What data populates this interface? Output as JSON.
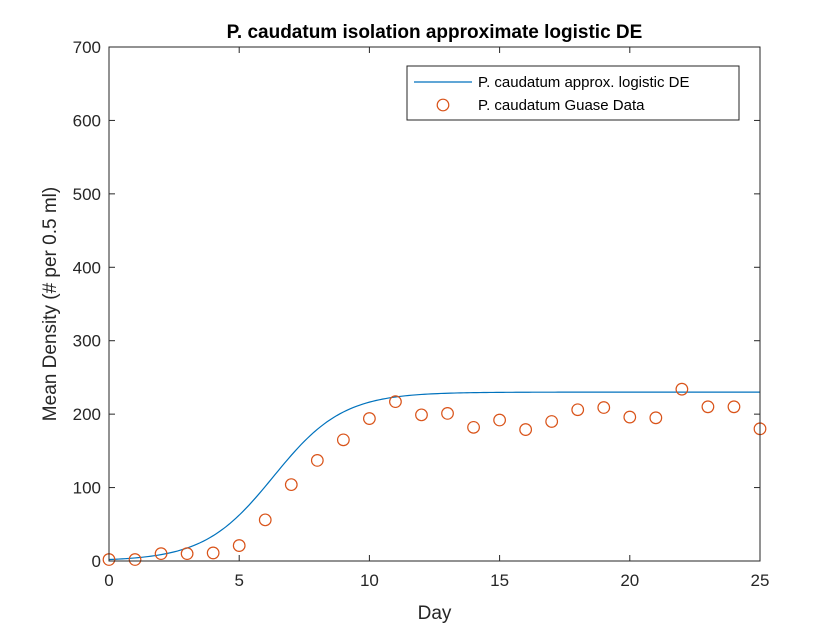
{
  "chart_data": {
    "type": "line",
    "title": "P. caudatum isolation approximate logistic DE",
    "xlabel": "Day",
    "ylabel": "Mean Density (# per 0.5 ml)",
    "xlim": [
      0,
      25
    ],
    "ylim": [
      0,
      700
    ],
    "xticks": [
      0,
      5,
      10,
      15,
      20,
      25
    ],
    "yticks": [
      0,
      100,
      200,
      300,
      400,
      500,
      600,
      700
    ],
    "grid": false,
    "legend_position": "top-right",
    "series": [
      {
        "name": "P. caudatum approx. logistic DE",
        "kind": "line",
        "color": "#0072BD",
        "model": "logistic",
        "K": 230,
        "N0": 2,
        "r": 0.75,
        "x": [
          0,
          1,
          2,
          3,
          4,
          5,
          6,
          7,
          8,
          9,
          10,
          11,
          12,
          13,
          14,
          15,
          16,
          17,
          18,
          19,
          20,
          21,
          22,
          23,
          24,
          25
        ],
        "y": [
          2,
          4.2,
          8.8,
          18.3,
          36.2,
          66.5,
          107.4,
          147.8,
          180,
          201,
          213.5,
          221,
          225.3,
          227.6,
          228.8,
          229.4,
          229.7,
          229.9,
          230,
          230,
          230,
          230,
          230,
          230,
          230,
          230
        ]
      },
      {
        "name": "P. caudatum Guase Data",
        "kind": "scatter",
        "marker": "circle",
        "color": "#D95319",
        "x": [
          0,
          1,
          2,
          3,
          4,
          5,
          6,
          7,
          8,
          9,
          10,
          11,
          12,
          13,
          14,
          15,
          16,
          17,
          18,
          19,
          20,
          21,
          22,
          23,
          24,
          25
        ],
        "y": [
          2,
          2,
          10,
          10,
          11,
          21,
          56,
          104,
          137,
          165,
          194,
          217,
          199,
          201,
          182,
          192,
          179,
          190,
          206,
          209,
          196,
          195,
          234,
          210,
          210,
          180
        ]
      }
    ]
  }
}
